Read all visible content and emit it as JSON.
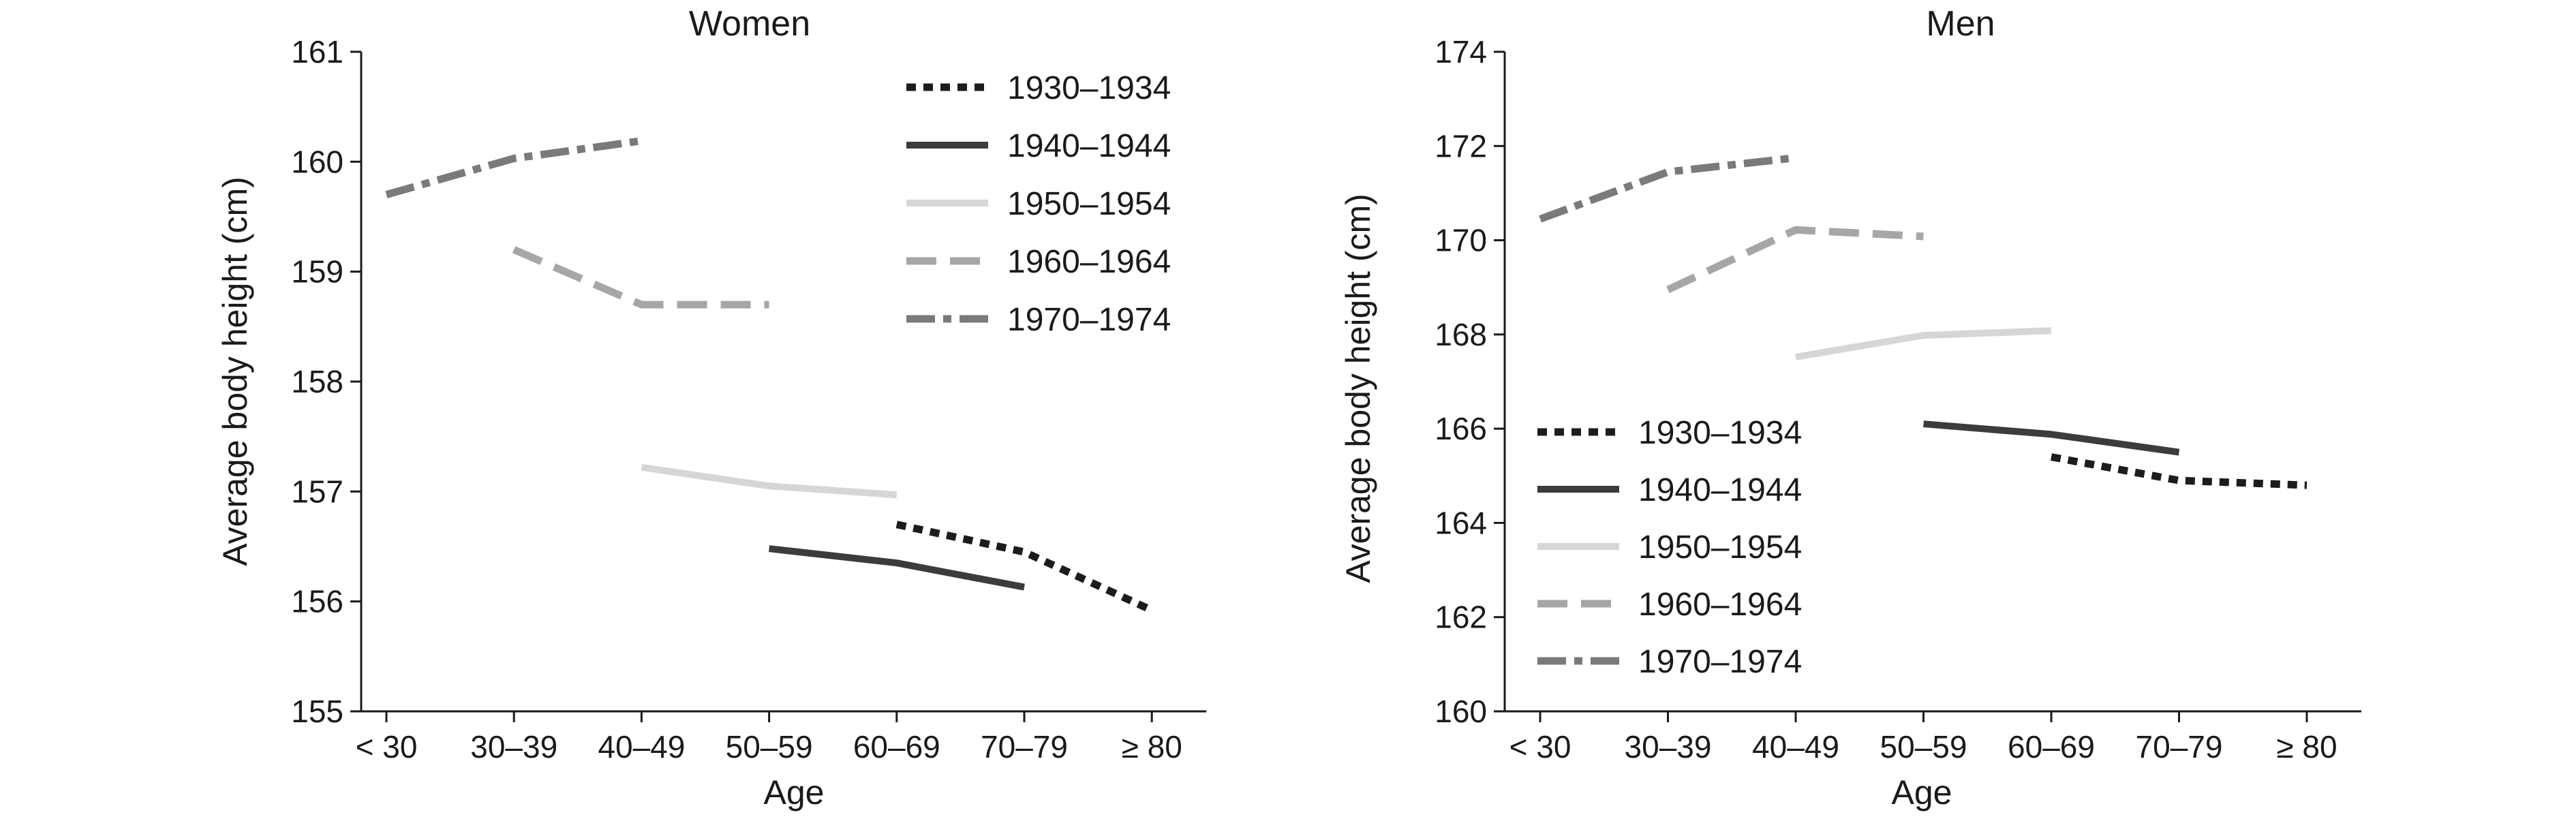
{
  "chart_data": [
    {
      "type": "line",
      "title": "Women",
      "xlabel": "Age",
      "ylabel": "Average body height (cm)",
      "categories": [
        "< 30",
        "30–39",
        "40–49",
        "50–59",
        "60–69",
        "70–79",
        "≥ 80"
      ],
      "ylim": [
        155,
        161
      ],
      "yticks": [
        155,
        156,
        157,
        158,
        159,
        160,
        161
      ],
      "grid": false,
      "legend_position": "top-right",
      "series": [
        {
          "name": "1930–1934",
          "color": "#1c1c1c",
          "dash": "dot",
          "values": [
            null,
            null,
            null,
            null,
            156.7,
            156.45,
            155.92
          ]
        },
        {
          "name": "1940–1944",
          "color": "#3c3c3c",
          "dash": "solid",
          "values": [
            null,
            null,
            null,
            156.48,
            156.35,
            156.13,
            null
          ]
        },
        {
          "name": "1950–1954",
          "color": "#d6d6d6",
          "dash": "solid",
          "values": [
            null,
            null,
            157.22,
            157.05,
            156.97,
            null,
            null
          ]
        },
        {
          "name": "1960–1964",
          "color": "#a6a6a6",
          "dash": "dash",
          "values": [
            null,
            159.2,
            158.7,
            158.7,
            null,
            null,
            null
          ]
        },
        {
          "name": "1970–1974",
          "color": "#7a7a7a",
          "dash": "dashdot",
          "values": [
            159.7,
            160.03,
            160.19,
            null,
            null,
            null,
            null
          ]
        }
      ]
    },
    {
      "type": "line",
      "title": "Men",
      "xlabel": "Age",
      "ylabel": "Average body height (cm)",
      "categories": [
        "< 30",
        "30–39",
        "40–49",
        "50–59",
        "60–69",
        "70–79",
        "≥ 80"
      ],
      "ylim": [
        160,
        174
      ],
      "yticks": [
        160,
        162,
        164,
        166,
        168,
        170,
        172,
        174
      ],
      "grid": false,
      "legend_position": "bottom-left",
      "series": [
        {
          "name": "1930–1934",
          "color": "#1c1c1c",
          "dash": "dot",
          "values": [
            null,
            null,
            null,
            null,
            165.4,
            164.9,
            164.8
          ]
        },
        {
          "name": "1940–1944",
          "color": "#3c3c3c",
          "dash": "solid",
          "values": [
            null,
            null,
            null,
            166.1,
            165.88,
            165.5,
            null
          ]
        },
        {
          "name": "1950–1954",
          "color": "#d6d6d6",
          "dash": "solid",
          "values": [
            null,
            null,
            167.52,
            167.98,
            168.08,
            null,
            null
          ]
        },
        {
          "name": "1960–1964",
          "color": "#a6a6a6",
          "dash": "dash",
          "values": [
            null,
            168.95,
            170.22,
            170.08,
            null,
            null,
            null
          ]
        },
        {
          "name": "1970–1974",
          "color": "#7a7a7a",
          "dash": "dashdot",
          "values": [
            170.45,
            171.45,
            171.75,
            null,
            null,
            null,
            null
          ]
        }
      ]
    }
  ]
}
